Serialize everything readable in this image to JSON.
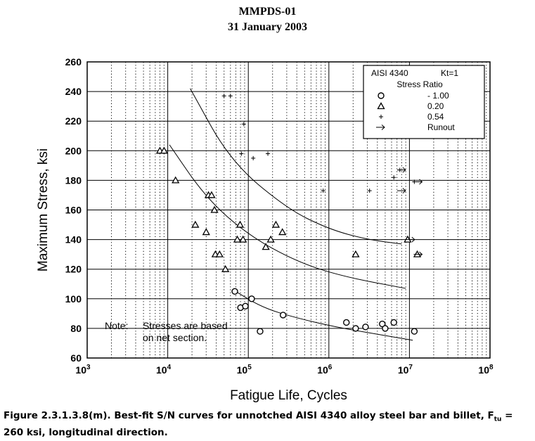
{
  "header": {
    "line1": "MMPDS-01",
    "line2": "31 January 2003"
  },
  "caption": {
    "text1": "Figure 2.3.1.3.8(m).  Best-fit S/N curves for unnotched AISI 4340 alloy steel bar and billet, F",
    "sub": "tu",
    "text2": " = 260 ksi, longitudinal direction."
  },
  "chart_data": {
    "type": "scatter",
    "xlabel": "Fatigue Life, Cycles",
    "ylabel": "Maximum Stress, ksi",
    "xscale": "log",
    "xlim": [
      1000,
      100000000
    ],
    "ylim": [
      60,
      260
    ],
    "x_ticks": [
      {
        "base": "10",
        "exp": "3"
      },
      {
        "base": "10",
        "exp": "4"
      },
      {
        "base": "10",
        "exp": "5"
      },
      {
        "base": "10",
        "exp": "6"
      },
      {
        "base": "10",
        "exp": "7"
      },
      {
        "base": "10",
        "exp": "8"
      }
    ],
    "y_ticks": [
      "60",
      "80",
      "100",
      "120",
      "140",
      "160",
      "180",
      "200",
      "220",
      "240",
      "260"
    ],
    "grid": true,
    "legend": {
      "position": "top-right",
      "material": "AISI 4340",
      "kt": "Kt=1",
      "heading": "Stress Ratio",
      "entries": [
        {
          "marker": "circle",
          "label": "- 1.00"
        },
        {
          "marker": "triangle",
          "label": "0.20"
        },
        {
          "marker": "plus",
          "label": "0.54"
        },
        {
          "marker": "arrow",
          "label": "Runout"
        }
      ]
    },
    "note": {
      "prefix": "Note:",
      "line1": "Stresses are based",
      "line2": "on net section."
    },
    "series": [
      {
        "marker": "circle",
        "points": [
          [
            68000,
            105
          ],
          [
            80000,
            94
          ],
          [
            92000,
            95
          ],
          [
            110000,
            100
          ],
          [
            140000,
            78
          ],
          [
            270000,
            89
          ],
          [
            1650000,
            84
          ],
          [
            2150000,
            80
          ],
          [
            2850000,
            81
          ],
          [
            4600000,
            83
          ],
          [
            5000000,
            80
          ],
          [
            6400000,
            84
          ],
          [
            11500000,
            78
          ]
        ]
      },
      {
        "marker": "triangle",
        "points": [
          [
            8000,
            200
          ],
          [
            9000,
            200
          ],
          [
            12500,
            180
          ],
          [
            22000,
            150
          ],
          [
            30000,
            145
          ],
          [
            32000,
            170
          ],
          [
            35000,
            170
          ],
          [
            38000,
            160
          ],
          [
            39000,
            130
          ],
          [
            44000,
            130
          ],
          [
            52000,
            120
          ],
          [
            73000,
            140
          ],
          [
            79000,
            150
          ],
          [
            86000,
            140
          ],
          [
            165000,
            135
          ],
          [
            190000,
            140
          ],
          [
            220000,
            150
          ],
          [
            265000,
            145
          ],
          [
            2150000,
            130
          ],
          [
            9500000,
            140
          ],
          [
            12500000,
            130
          ]
        ]
      },
      {
        "marker": "plus",
        "points": [
          [
            50000,
            237
          ],
          [
            60000,
            237
          ],
          [
            88000,
            218
          ],
          [
            82000,
            198
          ],
          [
            115000,
            195
          ],
          [
            175000,
            198
          ],
          [
            850000,
            173
          ],
          [
            3200000,
            173
          ],
          [
            6400000,
            182
          ],
          [
            7600000,
            187
          ],
          [
            11500000,
            179
          ]
        ]
      },
      {
        "marker": "arrow",
        "points": [
          [
            8100000,
            187
          ],
          [
            8100000,
            173
          ],
          [
            10500000,
            140
          ],
          [
            13000000,
            130
          ],
          [
            13000000,
            179
          ]
        ]
      }
    ],
    "curves": [
      {
        "points": [
          [
            19000,
            242
          ],
          [
            60000,
            193
          ],
          [
            300000,
            161
          ],
          [
            1000000,
            147
          ],
          [
            3000000,
            140
          ],
          [
            8000000,
            137
          ]
        ]
      },
      {
        "points": [
          [
            10500,
            204
          ],
          [
            30000,
            168
          ],
          [
            100000,
            143
          ],
          [
            400000,
            125
          ],
          [
            1500000,
            115
          ],
          [
            9000000,
            107
          ]
        ]
      },
      {
        "points": [
          [
            65000,
            106
          ],
          [
            150000,
            94
          ],
          [
            400000,
            87
          ],
          [
            1200000,
            81
          ],
          [
            4000000,
            76
          ],
          [
            11000000,
            72
          ]
        ]
      }
    ]
  }
}
